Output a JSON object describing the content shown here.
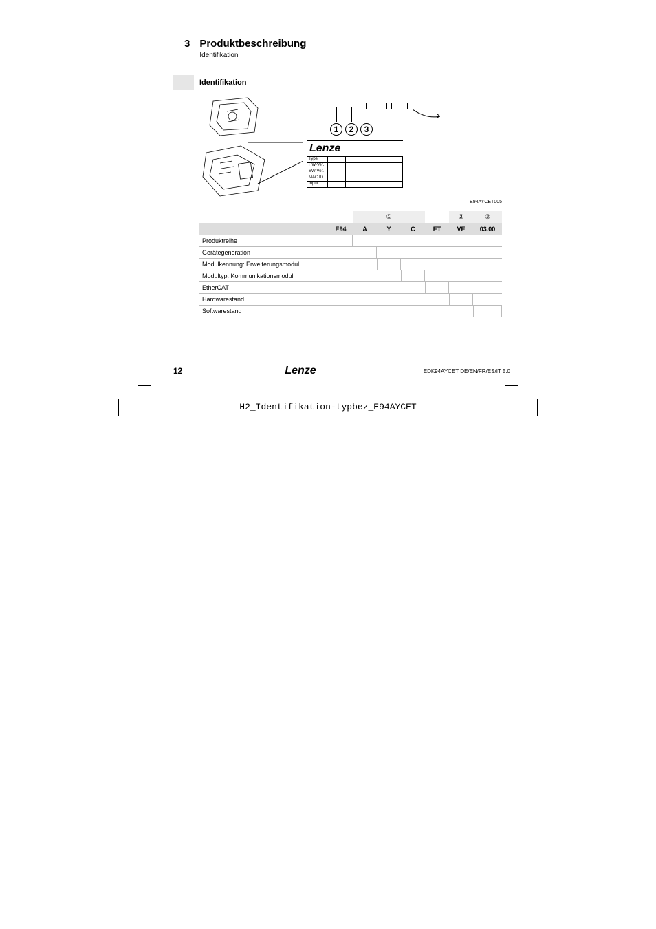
{
  "chapter": {
    "number": "3",
    "title": "Produktbeschreibung",
    "subtitle": "Identifikation"
  },
  "section_title": "Identifikation",
  "figure": {
    "circles": [
      "1",
      "2",
      "3"
    ],
    "brand": "Lenze",
    "label_rows": [
      "Type",
      "HW-Ver.",
      "SW-Ver.",
      "MAC ID",
      "Input"
    ],
    "code": "E94AYCET005"
  },
  "table": {
    "header_symbols": [
      "①",
      "②",
      "③"
    ],
    "header_codes": [
      "E94",
      "A",
      "Y",
      "C",
      "ET",
      "VE",
      "03.00"
    ],
    "header_col_widths": [
      35,
      35,
      35,
      35,
      35,
      35,
      42
    ],
    "header_symbol_bg": "#eeeeee",
    "header_code_bg": "#dddddd",
    "border_color": "#bbbbbb",
    "font_size": 9,
    "rows": [
      {
        "label": "Produktreihe",
        "span_start": 0,
        "span_end": 0
      },
      {
        "label": "Gerätegeneration",
        "span_start": 1,
        "span_end": 1
      },
      {
        "label": "Modulkennung: Erweiterungsmodul",
        "span_start": 2,
        "span_end": 2
      },
      {
        "label": "Modultyp: Kommunikationsmodul",
        "span_start": 3,
        "span_end": 3
      },
      {
        "label": "EtherCAT",
        "span_start": 4,
        "span_end": 4
      },
      {
        "label": "Hardwarestand",
        "span_start": 5,
        "span_end": 5
      },
      {
        "label": "Softwarestand",
        "span_start": 6,
        "span_end": 6
      }
    ]
  },
  "footer": {
    "page": "12",
    "brand": "Lenze",
    "doc": "EDK94AYCET  DE/EN/FR/ES/IT  5.0"
  },
  "bottom_caption": "H2_Identifikation-typbez_E94AYCET",
  "colors": {
    "page_bg": "#ffffff",
    "text": "#000000"
  }
}
